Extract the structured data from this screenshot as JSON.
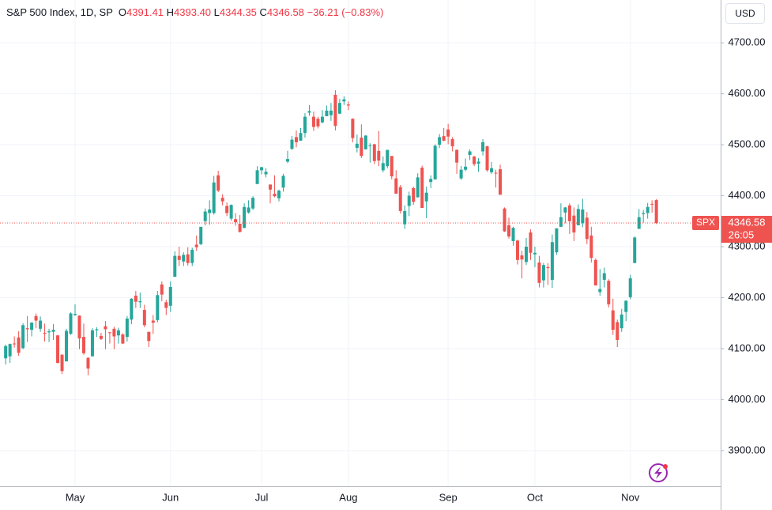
{
  "chart_data": {
    "type": "candlestick",
    "title": "S&P 500 Index, 1D, SP",
    "ohlc_labels": [
      "O",
      "H",
      "L",
      "C"
    ],
    "ohlc_text": [
      "4391.41",
      "4393.40",
      "4344.35",
      "4346.58"
    ],
    "change_text": "−36.21 (−0.83%)",
    "currency": "USD",
    "symbol": "SPX",
    "countdown": "26:05",
    "up_color": "#26a69a",
    "down_color": "#ef5350",
    "grid": true,
    "ylim": [
      3830,
      4784
    ],
    "yticks": [
      {
        "value": 3900,
        "label": "3900.00"
      },
      {
        "value": 4000,
        "label": "4000.00"
      },
      {
        "value": 4100,
        "label": "4100.00"
      },
      {
        "value": 4200,
        "label": "4200.00"
      },
      {
        "value": 4300,
        "label": "4300.00"
      },
      {
        "value": 4400,
        "label": "4400.00"
      },
      {
        "value": 4500,
        "label": "4500.00"
      },
      {
        "value": 4600,
        "label": "4600.00"
      },
      {
        "value": 4700,
        "label": "4700.00"
      }
    ],
    "categories": [
      null,
      null,
      null,
      null,
      null,
      null,
      null,
      null,
      null,
      null,
      null,
      null,
      null,
      null,
      null,
      null,
      "May",
      null,
      null,
      null,
      null,
      null,
      null,
      null,
      null,
      null,
      null,
      null,
      null,
      null,
      null,
      null,
      null,
      null,
      null,
      null,
      null,
      null,
      "Jun",
      null,
      null,
      null,
      null,
      null,
      null,
      null,
      null,
      null,
      null,
      null,
      null,
      null,
      null,
      null,
      null,
      null,
      null,
      null,
      null,
      "Jul",
      null,
      null,
      null,
      null,
      null,
      null,
      null,
      null,
      null,
      null,
      null,
      null,
      null,
      null,
      null,
      null,
      null,
      null,
      null,
      "Aug",
      null,
      null,
      null,
      null,
      null,
      null,
      null,
      null,
      null,
      null,
      null,
      null,
      null,
      null,
      null,
      null,
      null,
      null,
      null,
      null,
      null,
      null,
      "Sep",
      null,
      null,
      null,
      null,
      null,
      null,
      null,
      null,
      null,
      null,
      null,
      null,
      null,
      null,
      null,
      null,
      null,
      null,
      null,
      "Oct",
      null,
      null,
      null,
      null,
      null,
      null,
      null,
      null,
      null,
      null,
      null,
      null,
      null,
      null,
      null,
      null,
      null,
      null,
      null,
      null,
      null,
      "Nov",
      null,
      null,
      null,
      null,
      null,
      null
    ],
    "open": [
      4081,
      4085,
      4110,
      4122,
      4101,
      4140,
      4137,
      4164,
      4139,
      4131,
      4132,
      4133,
      4126,
      4088,
      4075,
      4129,
      4166,
      4165,
      4123,
      4082,
      4085,
      4136,
      4125,
      4144,
      4132,
      4139,
      4126,
      4128,
      4123,
      4157,
      4204,
      4191,
      4176,
      4133,
      4155,
      4156,
      4226,
      4191,
      4184,
      4241,
      4282,
      4271,
      4285,
      4268,
      4304,
      4305,
      4350,
      4366,
      4366,
      4440,
      4396,
      4380,
      4355,
      4354,
      4345,
      4337,
      4367,
      4375,
      4423,
      4450,
      4442,
      4422,
      4404,
      4395,
      4416,
      4467,
      4492,
      4515,
      4508,
      4523,
      4563,
      4555,
      4551,
      4544,
      4556,
      4558,
      4598,
      4561,
      4585,
      4579,
      4551,
      4494,
      4514,
      4491,
      4498,
      4501,
      4488,
      4450,
      4458,
      4478,
      4434,
      4417,
      4344,
      4380,
      4415,
      4397,
      4455,
      4389,
      4427,
      4432,
      4500,
      4517,
      4530,
      4511,
      4490,
      4434,
      4451,
      4480,
      4477,
      4463,
      4487,
      4497,
      4446,
      4445,
      4452,
      4375,
      4342,
      4311,
      4312,
      4283,
      4270,
      4328,
      4285,
      4269,
      4234,
      4260,
      4235,
      4289,
      4339,
      4367,
      4381,
      4361,
      4342,
      4346,
      4357,
      4322,
      4274,
      4211,
      4235,
      4233,
      4175,
      4152,
      4140,
      4172,
      4201,
      4268,
      4335,
      4364,
      4366,
      4384,
      4391.41
    ],
    "high": [
      4108,
      4110,
      4124,
      4134,
      4150,
      4164,
      4152,
      4169,
      4163,
      4149,
      4139,
      4148,
      4127,
      4089,
      4139,
      4171,
      4187,
      4165,
      4149,
      4083,
      4140,
      4142,
      4131,
      4154,
      4133,
      4143,
      4141,
      4130,
      4164,
      4199,
      4213,
      4210,
      4186,
      4133,
      4166,
      4213,
      4232,
      4196,
      4232,
      4291,
      4300,
      4289,
      4299,
      4298,
      4322,
      4339,
      4375,
      4391,
      4439,
      4449,
      4403,
      4387,
      4383,
      4366,
      4362,
      4385,
      4391,
      4399,
      4458,
      4457,
      4454,
      4422,
      4440,
      4412,
      4443,
      4488,
      4517,
      4528,
      4533,
      4562,
      4578,
      4565,
      4555,
      4568,
      4577,
      4582,
      4607,
      4590,
      4595,
      4585,
      4552,
      4520,
      4540,
      4519,
      4503,
      4502,
      4527,
      4477,
      4490,
      4478,
      4450,
      4421,
      4381,
      4408,
      4418,
      4444,
      4459,
      4418,
      4440,
      4501,
      4521,
      4533,
      4541,
      4515,
      4491,
      4458,
      4473,
      4491,
      4478,
      4474,
      4511,
      4498,
      4466,
      4451,
      4461,
      4377,
      4357,
      4339,
      4314,
      4292,
      4317,
      4334,
      4300,
      4282,
      4268,
      4268,
      4324,
      4336,
      4385,
      4378,
      4385,
      4377,
      4383,
      4394,
      4368,
      4339,
      4277,
      4256,
      4259,
      4236,
      4198,
      4157,
      4178,
      4195,
      4245,
      4320,
      4374,
      4372,
      4386,
      4391,
      4393.4
    ],
    "low": [
      4069,
      4072,
      4102,
      4086,
      4099,
      4113,
      4124,
      4140,
      4133,
      4114,
      4113,
      4117,
      4071,
      4050,
      4075,
      4127,
      4164,
      4099,
      4088,
      4048,
      4085,
      4123,
      4117,
      4099,
      4110,
      4099,
      4110,
      4109,
      4114,
      4148,
      4180,
      4180,
      4142,
      4103,
      4129,
      4152,
      4193,
      4166,
      4172,
      4241,
      4262,
      4262,
      4263,
      4262,
      4292,
      4303,
      4342,
      4343,
      4363,
      4407,
      4381,
      4360,
      4351,
      4341,
      4328,
      4336,
      4365,
      4372,
      4423,
      4442,
      4436,
      4385,
      4397,
      4389,
      4408,
      4464,
      4490,
      4495,
      4508,
      4514,
      4557,
      4527,
      4532,
      4542,
      4556,
      4547,
      4528,
      4560,
      4578,
      4568,
      4505,
      4485,
      4474,
      4491,
      4465,
      4462,
      4458,
      4446,
      4454,
      4432,
      4404,
      4365,
      4335,
      4360,
      4382,
      4396,
      4376,
      4356,
      4415,
      4432,
      4494,
      4507,
      4501,
      4487,
      4443,
      4431,
      4448,
      4470,
      4458,
      4447,
      4479,
      4447,
      4443,
      4416,
      4402,
      4329,
      4316,
      4302,
      4265,
      4238,
      4264,
      4274,
      4260,
      4220,
      4220,
      4225,
      4219,
      4284,
      4339,
      4346,
      4325,
      4311,
      4342,
      4338,
      4305,
      4269,
      4224,
      4204,
      4220,
      4181,
      4127,
      4103,
      4133,
      4154,
      4197,
      4268,
      4335,
      4347,
      4355,
      4367,
      4344.35
    ],
    "close": [
      4105,
      4109,
      4109,
      4092,
      4146,
      4138,
      4151,
      4155,
      4155,
      4130,
      4134,
      4137,
      4072,
      4056,
      4135,
      4169,
      4168,
      4120,
      4091,
      4061,
      4136,
      4138,
      4119,
      4138,
      4131,
      4124,
      4136,
      4110,
      4159,
      4198,
      4192,
      4193,
      4146,
      4115,
      4151,
      4205,
      4206,
      4180,
      4221,
      4282,
      4274,
      4284,
      4268,
      4294,
      4299,
      4339,
      4369,
      4373,
      4426,
      4410,
      4389,
      4366,
      4382,
      4348,
      4329,
      4378,
      4377,
      4396,
      4450,
      4456,
      4447,
      4412,
      4399,
      4410,
      4439,
      4472,
      4510,
      4505,
      4523,
      4555,
      4566,
      4535,
      4536,
      4555,
      4567,
      4567,
      4537,
      4582,
      4589,
      4577,
      4513,
      4502,
      4478,
      4518,
      4499,
      4468,
      4469,
      4464,
      4490,
      4438,
      4404,
      4370,
      4370,
      4400,
      4388,
      4436,
      4376,
      4406,
      4433,
      4498,
      4515,
      4508,
      4516,
      4497,
      4465,
      4451,
      4457,
      4487,
      4462,
      4467,
      4505,
      4450,
      4454,
      4444,
      4402,
      4330,
      4320,
      4337,
      4274,
      4275,
      4300,
      4288,
      4288,
      4229,
      4264,
      4258,
      4309,
      4336,
      4358,
      4377,
      4350,
      4328,
      4374,
      4373,
      4315,
      4278,
      4224,
      4217,
      4248,
      4187,
      4137,
      4117,
      4167,
      4194,
      4238,
      4318,
      4358,
      4366,
      4378,
      4383,
      4346.58
    ]
  }
}
